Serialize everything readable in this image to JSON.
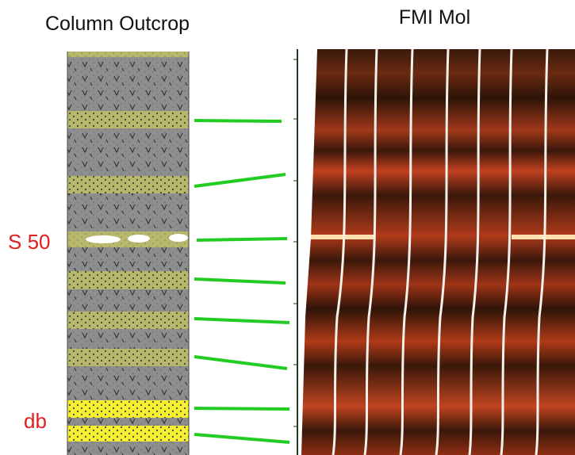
{
  "header": {
    "left_title": "Column Outcrop",
    "right_title": "FMI Mol"
  },
  "labels": {
    "marker_s50": "S 50",
    "marker_db": "db"
  }
}
